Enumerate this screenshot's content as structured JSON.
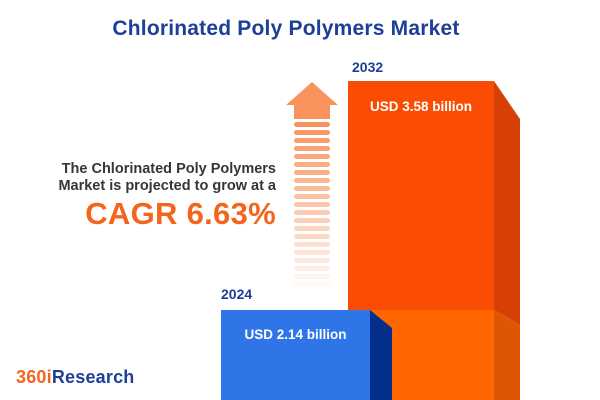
{
  "chart_data": {
    "type": "bar",
    "title": "Chlorinated Poly Polymers Market",
    "categories": [
      "2024",
      "2032"
    ],
    "values": [
      2.14,
      3.58
    ],
    "value_labels": [
      "USD 2.14 billion",
      "USD 3.58 billion"
    ],
    "unit": "USD billion",
    "cagr_percent": 6.63,
    "orientation": "vertical",
    "style": "3d-infographic-bars",
    "grid": false,
    "legend": false
  },
  "insight": {
    "line1": "The Chlorinated Poly Polymers",
    "line2": "Market is projected to grow at a",
    "cagr_label": "CAGR 6.63%"
  },
  "logo": {
    "prefix": "360i",
    "suffix": "Research"
  },
  "colors": {
    "background": "#ffffff",
    "title_blue": "#1d3e99",
    "body_text": "#363636",
    "accent_orange": "#f4641c",
    "bar_2024_front": "#2f75e8",
    "bar_2024_side": "#04308c",
    "bar_2032_front": "#fb4c04",
    "bar_2032_side": "#d64004",
    "bar_2032_front_lower": "#ff6600",
    "bar_2032_side_lower": "#de5504",
    "arrow_orange": "#f8935d",
    "value_label_white": "#ffffff",
    "logo_orange": "#f26522",
    "logo_blue": "#1d3f99"
  }
}
